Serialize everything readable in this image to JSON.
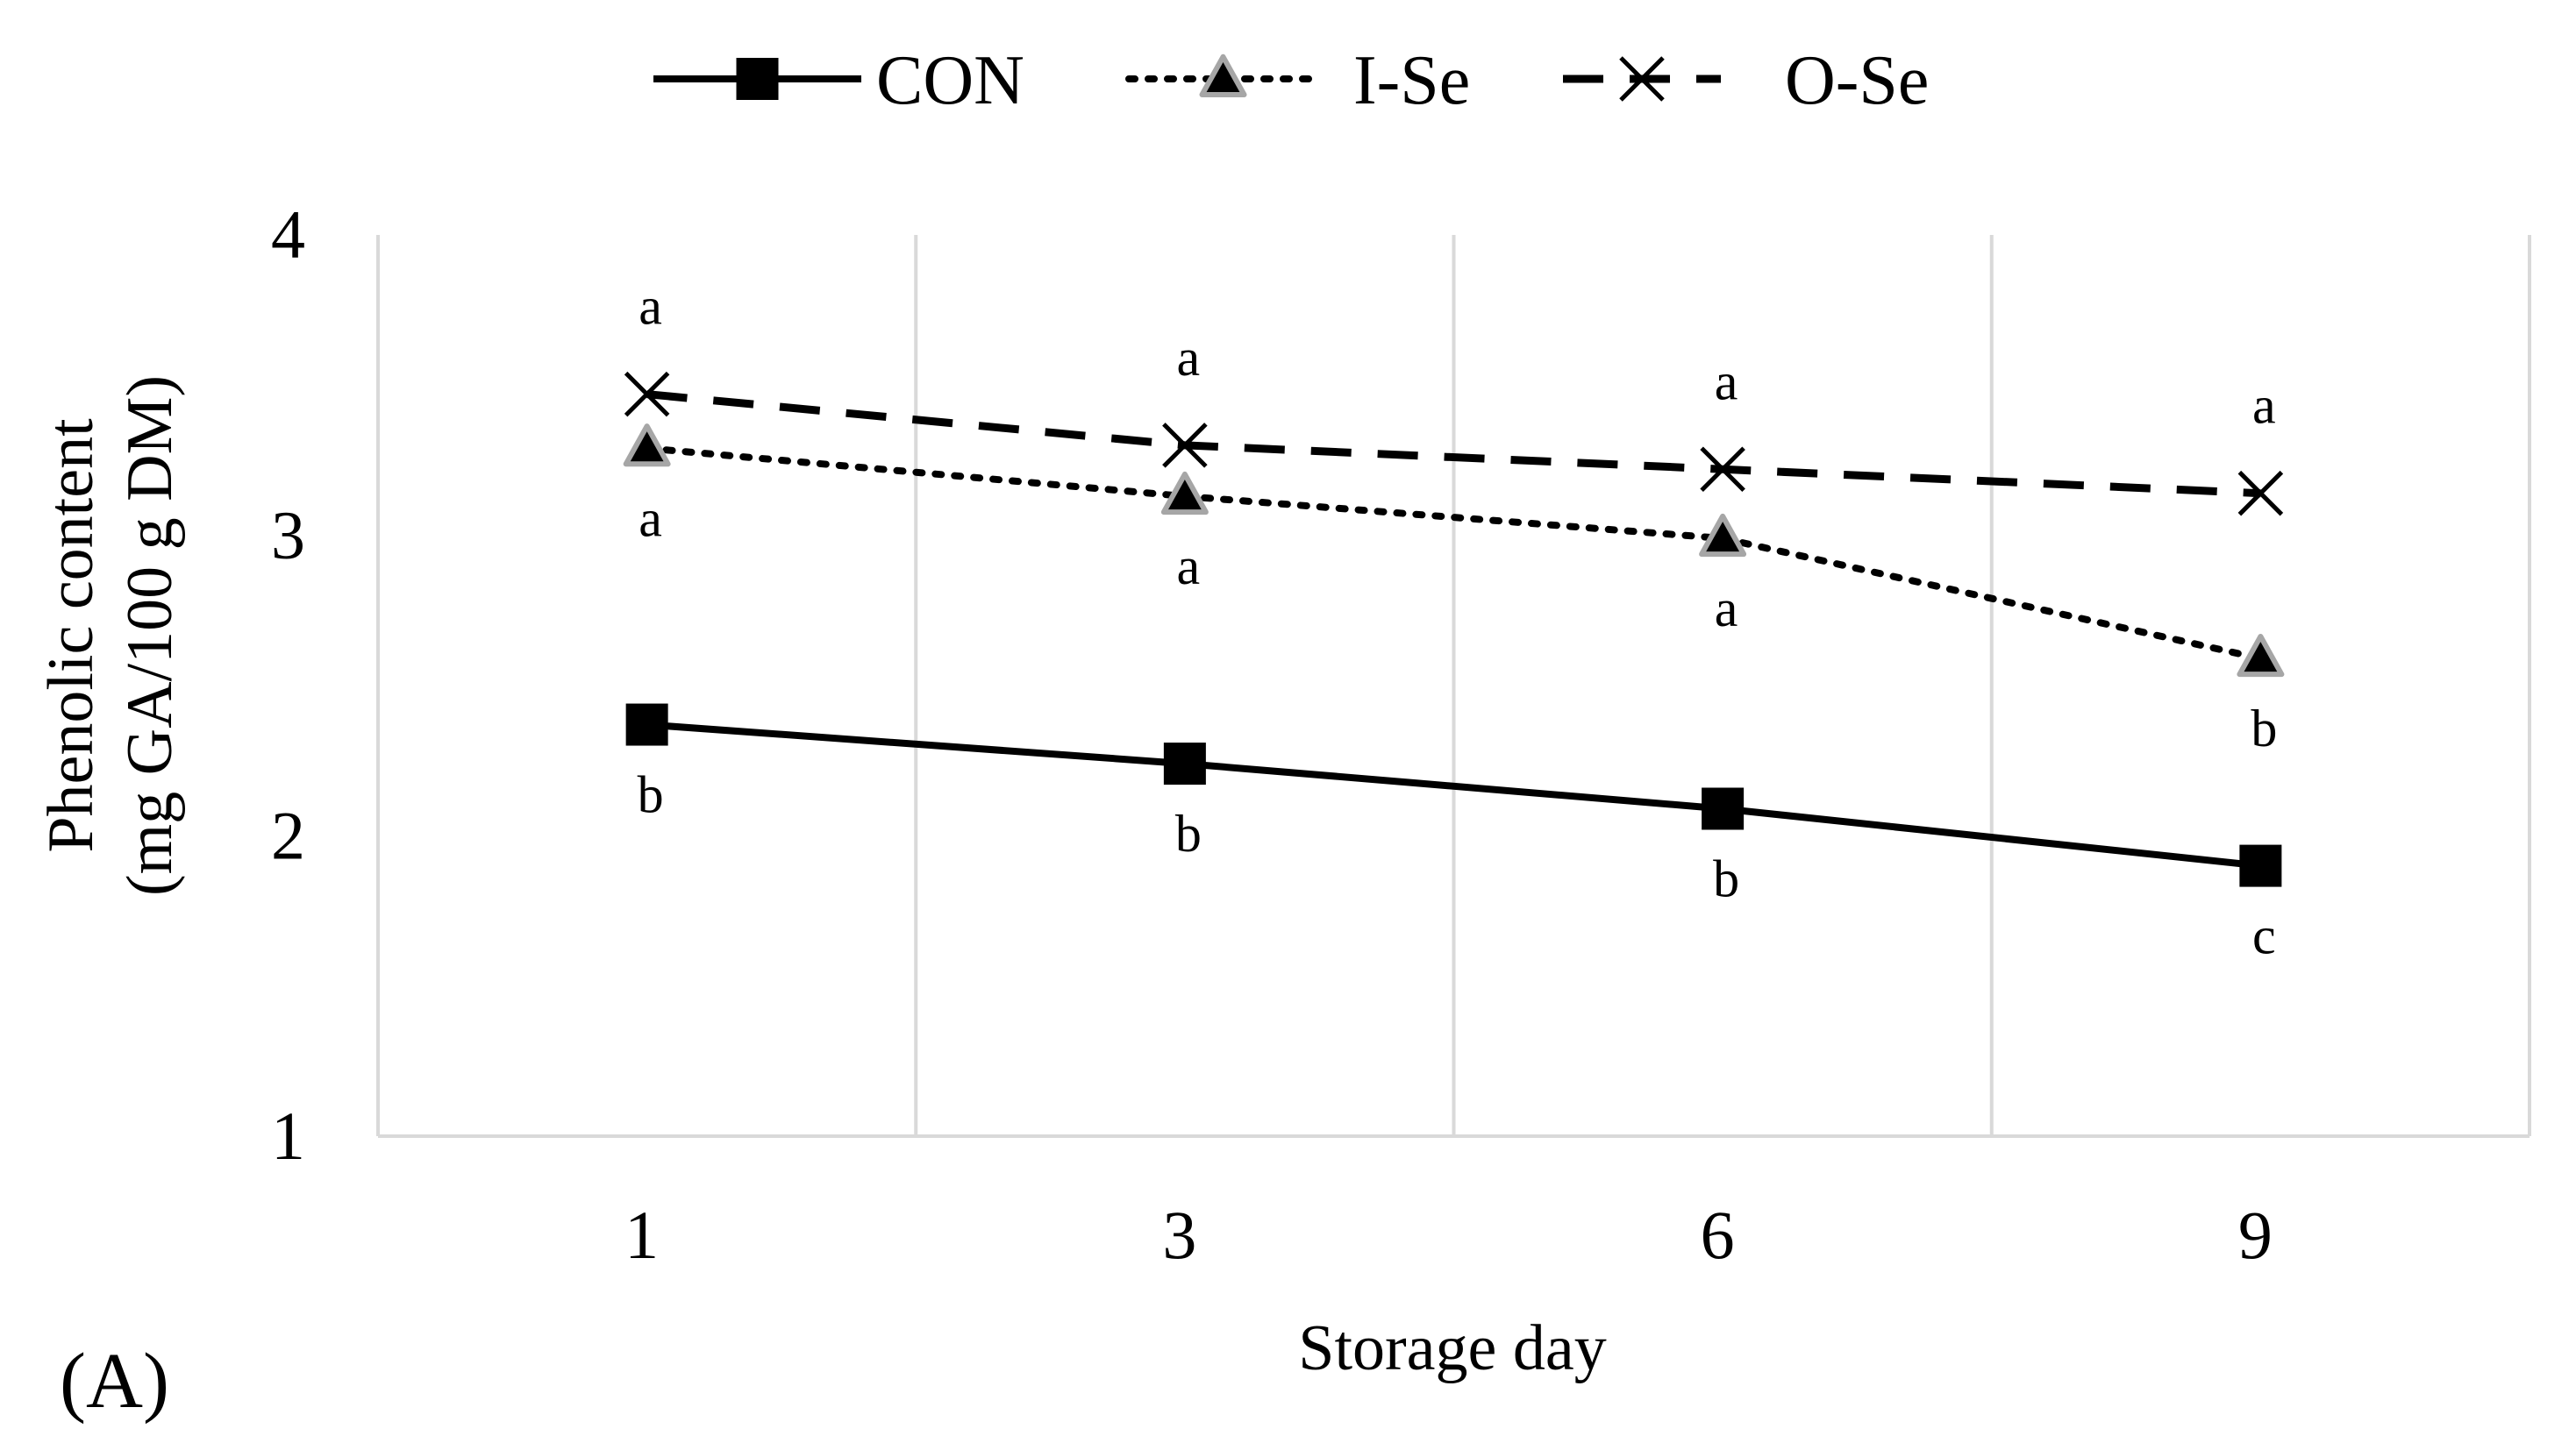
{
  "chart_data": {
    "type": "line",
    "panel_label": "(A)",
    "xlabel": "Storage day",
    "ylabel_line1": "Phenolic content",
    "ylabel_line2": "(mg GA/100 g DM)",
    "categories": [
      "1",
      "3",
      "6",
      "9"
    ],
    "ylim": [
      1,
      4
    ],
    "yticks": [
      1,
      2,
      3,
      4
    ],
    "grid": "vertical",
    "legend_position": "top",
    "series": [
      {
        "name": "CON",
        "values": [
          2.37,
          2.24,
          2.09,
          1.9
        ],
        "letters": [
          "b",
          "b",
          "b",
          "c"
        ],
        "letter_position": [
          "below",
          "below",
          "below",
          "below"
        ],
        "line_style": "solid",
        "marker": "square",
        "color": "#000000"
      },
      {
        "name": "I-Se",
        "values": [
          3.29,
          3.13,
          2.99,
          2.59
        ],
        "letters": [
          "a",
          "a",
          "a",
          "b"
        ],
        "letter_position": [
          "below",
          "below",
          "below",
          "below"
        ],
        "line_style": "dotted",
        "marker": "triangle",
        "color": "#000000",
        "marker_edge_color": "#a6a6a6"
      },
      {
        "name": "O-Se",
        "values": [
          3.47,
          3.3,
          3.22,
          3.14
        ],
        "letters": [
          "a",
          "a",
          "a",
          "a"
        ],
        "letter_position": [
          "above",
          "above",
          "above",
          "above"
        ],
        "line_style": "dashed",
        "marker": "x",
        "color": "#000000"
      }
    ]
  }
}
